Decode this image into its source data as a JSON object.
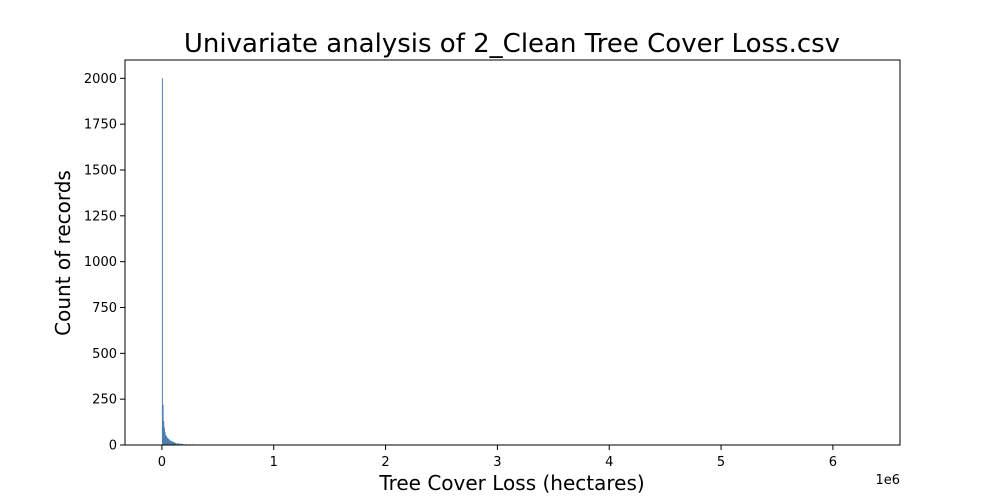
{
  "chart_data": {
    "type": "bar",
    "title": "Univariate analysis of 2_Clean Tree Cover Loss.csv",
    "xlabel": "Tree Cover Loss (hectares)",
    "ylabel": "Count of records",
    "x_offset_label": "1e6",
    "xlim": [
      -0.33,
      6.6
    ],
    "ylim": [
      0,
      2100
    ],
    "xticks": [
      0,
      1,
      2,
      3,
      4,
      5,
      6
    ],
    "xtick_labels": [
      "0",
      "1",
      "2",
      "3",
      "4",
      "5",
      "6"
    ],
    "yticks": [
      0,
      250,
      500,
      750,
      1000,
      1250,
      1500,
      1750,
      2000
    ],
    "ytick_labels": [
      "0",
      "250",
      "500",
      "750",
      "1000",
      "1250",
      "1500",
      "1750",
      "2000"
    ],
    "bin_width": 0.006,
    "bin_starts": [
      0.0,
      0.006,
      0.012,
      0.018,
      0.024,
      0.03,
      0.036,
      0.042,
      0.048,
      0.054,
      0.06,
      0.066,
      0.072,
      0.078,
      0.084,
      0.09,
      0.096,
      0.102,
      0.108,
      0.114,
      0.12,
      0.132,
      0.144,
      0.156,
      0.168,
      0.18,
      0.21,
      0.24,
      0.27,
      0.3,
      0.35,
      0.4,
      0.45,
      0.5,
      0.55,
      0.6,
      0.65
    ],
    "values": [
      2000,
      220,
      130,
      95,
      70,
      55,
      48,
      42,
      38,
      33,
      30,
      26,
      24,
      22,
      20,
      19,
      17,
      15,
      14,
      12,
      11,
      10,
      9,
      8,
      7,
      6,
      5,
      4,
      4,
      3,
      3,
      2,
      2,
      2,
      2,
      1,
      1
    ],
    "bar_color": "#4c7fae",
    "grid": false,
    "legend": "none"
  }
}
